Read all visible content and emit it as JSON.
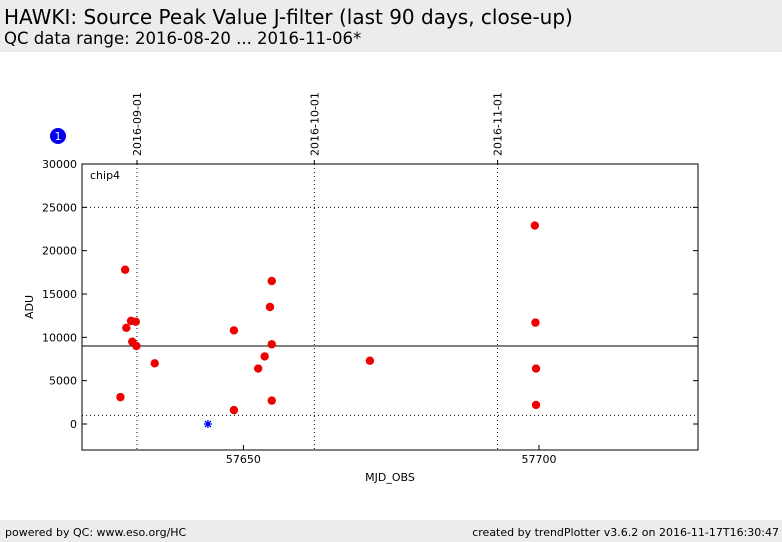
{
  "header": {
    "title": "HAWKI: Source Peak Value J-filter (last 90 days, close-up)",
    "subtitle": "QC data range: 2016-08-20 ... 2016-11-06*"
  },
  "footer": {
    "left": "powered by QC: www.eso.org/HC",
    "right": "created by trendPlotter v3.6.2 on 2016-11-17T16:30:47"
  },
  "badge": "1",
  "colors": {
    "points": "#ee0000",
    "special": "#0000ee",
    "badge": "#0000ee"
  },
  "chart_data": {
    "type": "scatter",
    "panel_label": "chip4",
    "xlabel": "MJD_OBS",
    "ylabel": "ADU",
    "xlim": [
      57622.7,
      57726.9
    ],
    "ylim": [
      -3000,
      30000
    ],
    "x_ticks": [
      57650,
      57700
    ],
    "y_ticks": [
      0,
      5000,
      10000,
      15000,
      20000,
      25000,
      30000
    ],
    "date_ticks": [
      {
        "label": "2016-09-01",
        "mjd": 57632
      },
      {
        "label": "2016-10-01",
        "mjd": 57662
      },
      {
        "label": "2016-11-01",
        "mjd": 57693
      }
    ],
    "reference_lines": {
      "mean": 9000,
      "upper": 25000,
      "lower": 1000
    },
    "series": [
      {
        "marker": "circle",
        "points": [
          [
            57629.2,
            3100
          ],
          [
            57630.0,
            17800
          ],
          [
            57630.2,
            11100
          ],
          [
            57631.0,
            11900
          ],
          [
            57631.2,
            9500
          ],
          [
            57631.8,
            11800
          ],
          [
            57631.9,
            9000
          ],
          [
            57635.0,
            7000
          ],
          [
            57648.4,
            10800
          ],
          [
            57648.4,
            1600
          ],
          [
            57652.5,
            6400
          ],
          [
            57653.6,
            7800
          ],
          [
            57654.5,
            13500
          ],
          [
            57654.8,
            16500
          ],
          [
            57654.8,
            9200
          ],
          [
            57654.8,
            2700
          ],
          [
            57671.4,
            7300
          ],
          [
            57699.3,
            22900
          ],
          [
            57699.4,
            11700
          ],
          [
            57699.5,
            6400
          ],
          [
            57699.5,
            2200
          ]
        ]
      },
      {
        "marker": "star",
        "points": [
          [
            57644.0,
            0
          ]
        ]
      }
    ]
  }
}
